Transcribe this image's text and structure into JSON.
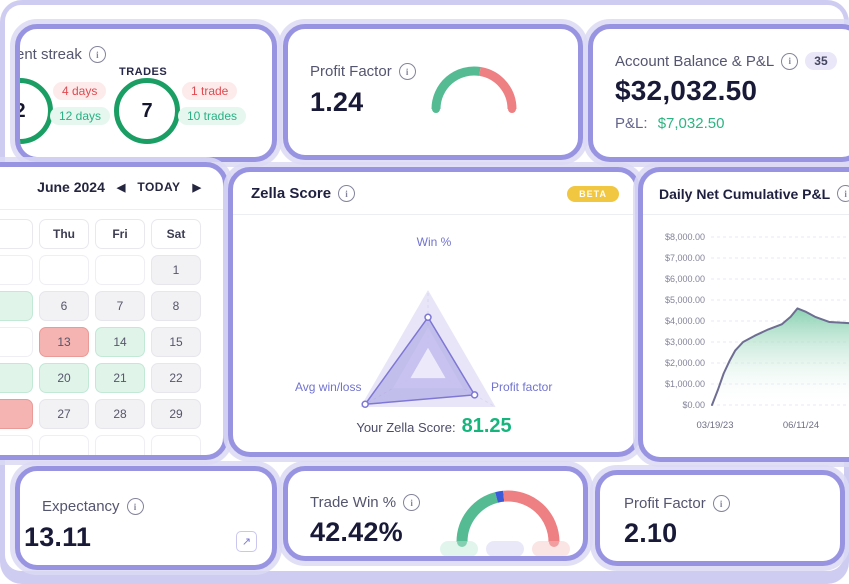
{
  "streak": {
    "title": "ent streak",
    "left_circle_value": "2",
    "trades_label": "TRADES",
    "trades_circle_value": "7",
    "day_loss_pill": "4 days",
    "day_win_pill": "12 days",
    "trade_loss_pill": "1 trade",
    "trade_win_pill": "10 trades"
  },
  "profit_factor_top": {
    "title": "Profit Factor",
    "value": "1.24"
  },
  "account": {
    "title": "Account Balance & P&L",
    "badge": "35",
    "balance": "$32,032.50",
    "pnl_label": "P&L:",
    "pnl_value": "$7,032.50"
  },
  "calendar": {
    "month": "June 2024",
    "prev_icon": "◀",
    "today_label": "TODAY",
    "next_icon": "▶",
    "headers": [
      "",
      "Thu",
      "Fri",
      "Sat"
    ],
    "rows": [
      {
        "cells": [
          {
            "t": "",
            "c": "blank"
          },
          {
            "t": "",
            "c": "blank"
          },
          {
            "t": "",
            "c": "blank"
          },
          {
            "t": "1",
            "c": "gray"
          }
        ]
      },
      {
        "cells": [
          {
            "t": "",
            "c": "green"
          },
          {
            "t": "6",
            "c": "gray"
          },
          {
            "t": "7",
            "c": "gray"
          },
          {
            "t": "8",
            "c": "gray"
          }
        ]
      },
      {
        "cells": [
          {
            "t": "",
            "c": "blank"
          },
          {
            "t": "13",
            "c": "red"
          },
          {
            "t": "14",
            "c": "green"
          },
          {
            "t": "15",
            "c": "gray"
          }
        ]
      },
      {
        "cells": [
          {
            "t": "",
            "c": "green"
          },
          {
            "t": "20",
            "c": "green"
          },
          {
            "t": "21",
            "c": "green"
          },
          {
            "t": "22",
            "c": "gray"
          }
        ]
      },
      {
        "cells": [
          {
            "t": "",
            "c": "red"
          },
          {
            "t": "27",
            "c": "gray"
          },
          {
            "t": "28",
            "c": "gray"
          },
          {
            "t": "29",
            "c": "gray"
          }
        ]
      },
      {
        "cells": [
          {
            "t": "",
            "c": "blank"
          },
          {
            "t": "",
            "c": "blank"
          },
          {
            "t": "",
            "c": "blank"
          },
          {
            "t": "",
            "c": "blank"
          }
        ]
      }
    ]
  },
  "zella": {
    "title": "Zella Score",
    "beta": "BETA",
    "score_label": "Your Zella Score:",
    "score": "81.25"
  },
  "daily": {
    "title": "Daily Net Cumulative P&L"
  },
  "expectancy": {
    "title": "Expectancy",
    "value": "13.11"
  },
  "trade_win": {
    "title": "Trade Win %",
    "value": "42.42%"
  },
  "profit_factor_bottom": {
    "title": "Profit Factor",
    "value": "2.10"
  },
  "colors": {
    "accent_green": "#17b57e",
    "accent_red": "#ee7f82",
    "gauge_green": "#55bb93",
    "gauge_blue": "#3b5bd9",
    "card_border": "#9894e2"
  },
  "chart_data": [
    {
      "id": "pf-gauge",
      "type": "gauge",
      "value": 1.24,
      "segments": [
        {
          "color": "#55bb93",
          "frac": 0.55
        },
        {
          "color": "#ee7f82",
          "frac": 0.45
        }
      ]
    },
    {
      "id": "win-gauge",
      "type": "gauge",
      "value": 42.42,
      "segments": [
        {
          "color": "#55bb93",
          "frac": 0.42
        },
        {
          "color": "#3b5bd9",
          "frac": 0.05
        },
        {
          "color": "#ee7f82",
          "frac": 0.53
        }
      ]
    },
    {
      "id": "zella-radar",
      "type": "radar",
      "axes": [
        "Win %",
        "Profit factor",
        "Avg win/loss"
      ],
      "values_norm": [
        0.65,
        0.69,
        0.93
      ],
      "score": 81.25
    },
    {
      "id": "daily-area",
      "type": "area",
      "title": "Daily Net Cumulative P&L",
      "ylim": [
        0,
        8000
      ],
      "y_ticks": [
        "$8,000.00",
        "$7,000.00",
        "$6,000.00",
        "$5,000.00",
        "$4,000.00",
        "$3,000.00",
        "$2,000.00",
        "$1,000.00",
        "$0.00"
      ],
      "x_ticks": [
        "03/19/23",
        "06/11/24"
      ],
      "points_frac_x": [
        0,
        0.042,
        0.085,
        0.128,
        0.17,
        0.227,
        0.312,
        0.411,
        0.511,
        0.574,
        0.624,
        0.681,
        0.752,
        0.858,
        1.0
      ],
      "values": [
        0,
        700,
        1500,
        2100,
        2600,
        3000,
        3300,
        3600,
        3850,
        4200,
        4600,
        4450,
        4200,
        3950,
        3900
      ]
    }
  ]
}
